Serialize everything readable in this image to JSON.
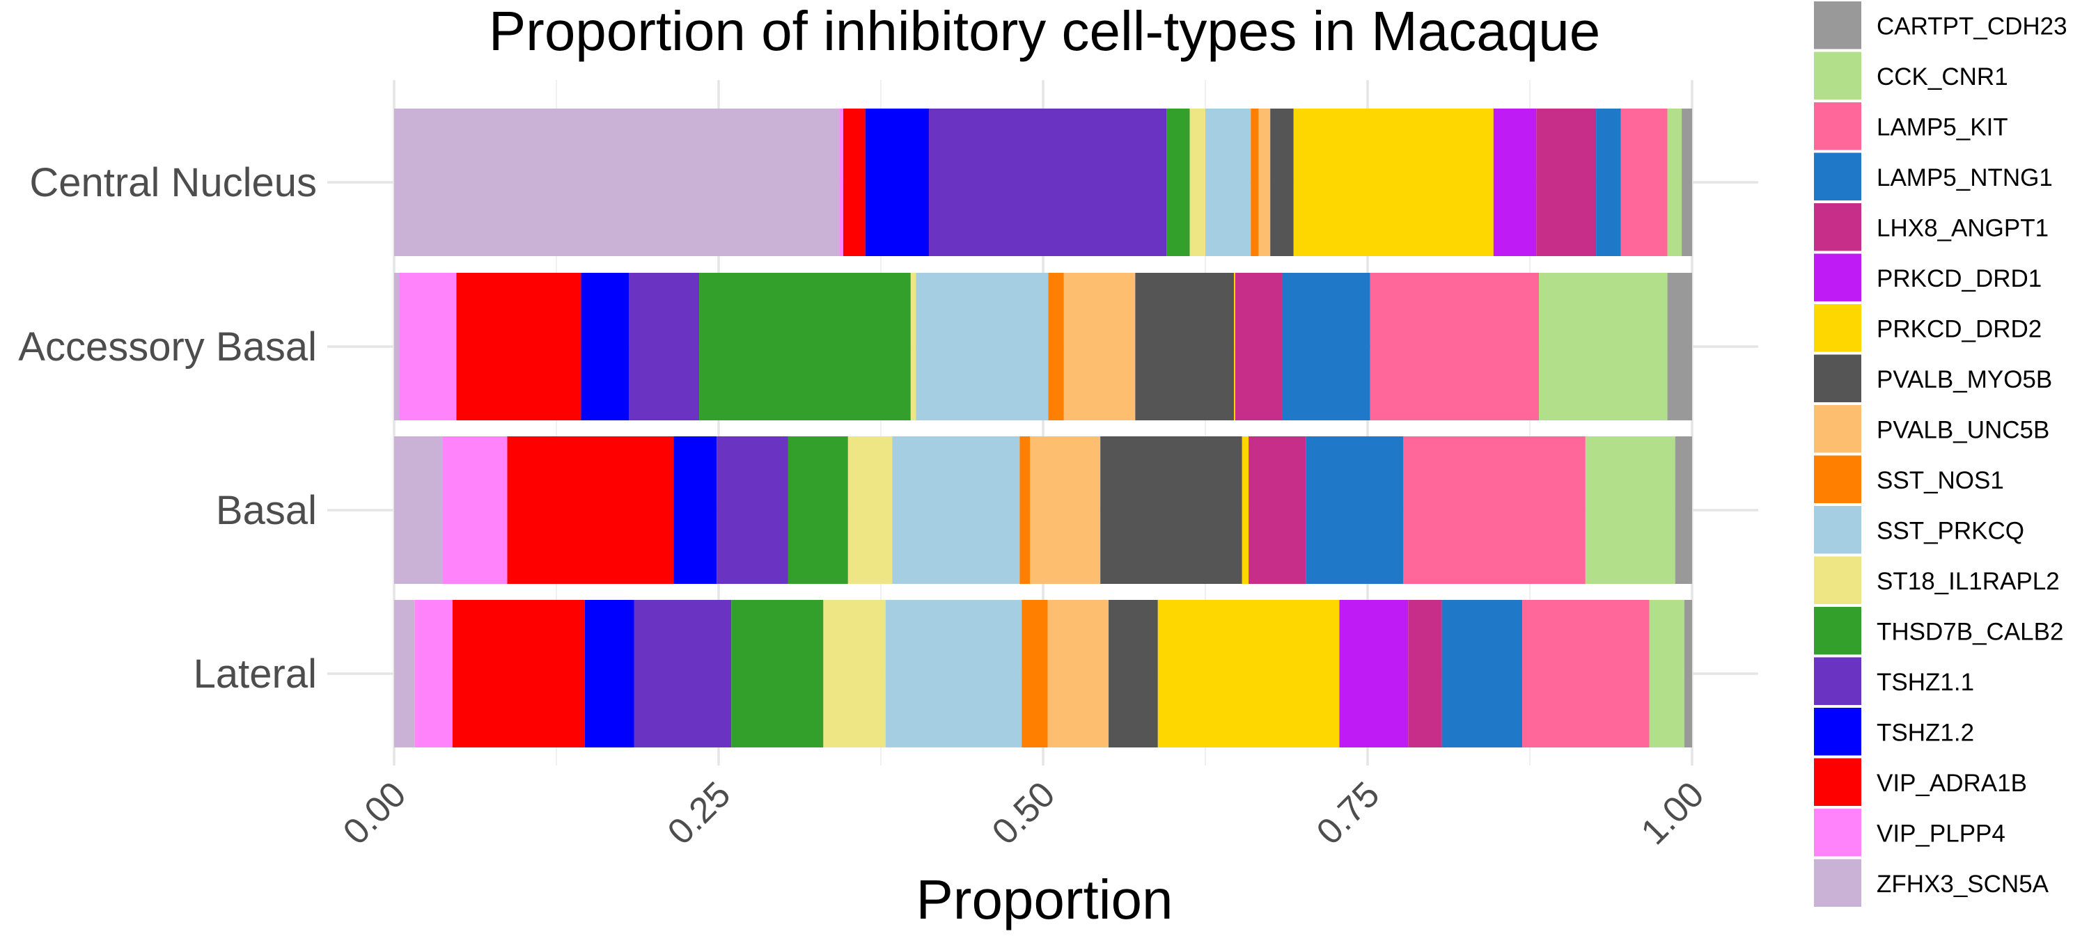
{
  "chart_data": {
    "type": "bar",
    "orientation": "horizontal",
    "stacked": true,
    "title": "Proportion of inhibitory cell-types in Macaque",
    "xlabel": "Proportion",
    "ylabel": "",
    "xlim": [
      0,
      1
    ],
    "x_ticks": [
      "0.00",
      "0.25",
      "0.50",
      "0.75",
      "1.00"
    ],
    "x_tick_values": [
      0,
      0.25,
      0.5,
      0.75,
      1.0
    ],
    "grid": true,
    "legend_position": "right",
    "categories": [
      "Central Nucleus",
      "Accessory Basal",
      "Basal",
      "Lateral"
    ],
    "series": [
      {
        "name": "ZFHX3_SCN5A",
        "color": "#CAB2D6",
        "values": [
          0.343,
          0.004,
          0.037,
          0.016
        ]
      },
      {
        "name": "VIP_PLPP4",
        "color": "#FF83FA",
        "values": [
          0.003,
          0.044,
          0.05,
          0.029
        ]
      },
      {
        "name": "VIP_ADRA1B",
        "color": "#FF0000",
        "values": [
          0.017,
          0.096,
          0.128,
          0.102
        ]
      },
      {
        "name": "TSHZ1.2",
        "color": "#0000FF",
        "values": [
          0.049,
          0.037,
          0.033,
          0.038
        ]
      },
      {
        "name": "TSHZ1.1",
        "color": "#6A33C2",
        "values": [
          0.183,
          0.054,
          0.055,
          0.075
        ]
      },
      {
        "name": "THSD7B_CALB2",
        "color": "#33A02C",
        "values": [
          0.018,
          0.163,
          0.046,
          0.071
        ]
      },
      {
        "name": "ST18_IL1RAPL2",
        "color": "#EEE685",
        "values": [
          0.012,
          0.004,
          0.034,
          0.048
        ]
      },
      {
        "name": "SST_PRKCQ",
        "color": "#A6CEE3",
        "values": [
          0.035,
          0.102,
          0.098,
          0.105
        ]
      },
      {
        "name": "SST_NOS1",
        "color": "#FF7F00",
        "values": [
          0.006,
          0.012,
          0.008,
          0.02
        ]
      },
      {
        "name": "PVALB_UNC5B",
        "color": "#FDBF6F",
        "values": [
          0.009,
          0.055,
          0.054,
          0.047
        ]
      },
      {
        "name": "PVALB_MYO5B",
        "color": "#555555",
        "values": [
          0.018,
          0.076,
          0.109,
          0.038
        ]
      },
      {
        "name": "PRKCD_DRD2",
        "color": "#FFD700",
        "values": [
          0.154,
          0.001,
          0.005,
          0.14
        ]
      },
      {
        "name": "PRKCD_DRD1",
        "color": "#BF1CF5",
        "values": [
          0.033,
          0.0,
          0.0,
          0.053
        ]
      },
      {
        "name": "LHX8_ANGPT1",
        "color": "#C72E89",
        "values": [
          0.046,
          0.036,
          0.044,
          0.026
        ]
      },
      {
        "name": "LAMP5_NTNG1",
        "color": "#1F78C8",
        "values": [
          0.019,
          0.068,
          0.075,
          0.062
        ]
      },
      {
        "name": "LAMP5_KIT",
        "color": "#FF6699",
        "values": [
          0.036,
          0.13,
          0.14,
          0.098
        ]
      },
      {
        "name": "CCK_CNR1",
        "color": "#B2DF8A",
        "values": [
          0.011,
          0.099,
          0.069,
          0.027
        ]
      },
      {
        "name": "CARTPT_CDH23",
        "color": "#999999",
        "values": [
          0.008,
          0.019,
          0.013,
          0.006
        ]
      }
    ]
  }
}
